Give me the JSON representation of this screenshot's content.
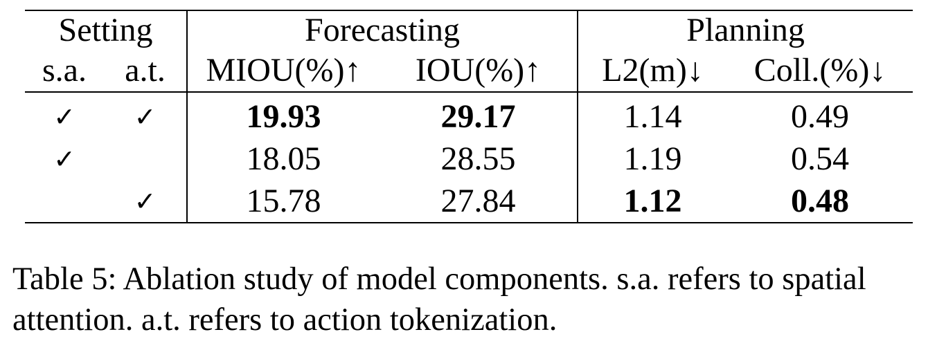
{
  "table": {
    "group_headers": {
      "setting": "Setting",
      "forecasting": "Forecasting",
      "planning": "Planning"
    },
    "column_headers": {
      "sa": "s.a.",
      "at": "a.t.",
      "miou": "MIOU(%)↑",
      "iou": "IOU(%)↑",
      "l2": "L2(m)↓",
      "coll": "Coll.(%)↓"
    },
    "rows": [
      {
        "sa": "✓",
        "at": "✓",
        "miou": "19.93",
        "iou": "29.17",
        "l2": "1.14",
        "coll": "0.49"
      },
      {
        "sa": "✓",
        "at": "",
        "miou": "18.05",
        "iou": "28.55",
        "l2": "1.19",
        "coll": "0.54"
      },
      {
        "sa": "",
        "at": "✓",
        "miou": "15.78",
        "iou": "27.84",
        "l2": "1.12",
        "coll": "0.48"
      }
    ],
    "bold_cells": [
      "rows.0.miou",
      "rows.0.iou",
      "rows.2.l2",
      "rows.2.coll"
    ]
  },
  "caption": "Table 5: Ablation study of model components. s.a. refers to spatial attention. a.t. refers to action tokenization."
}
